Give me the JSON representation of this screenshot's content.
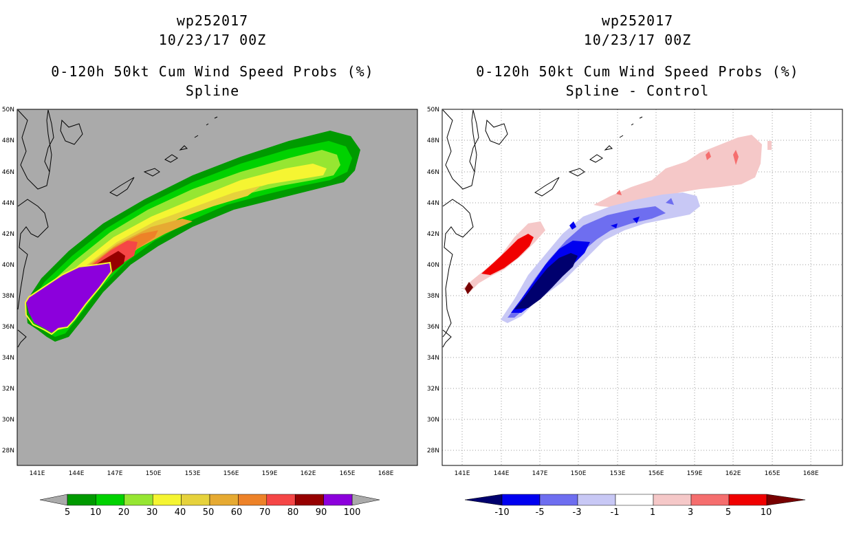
{
  "left": {
    "title_line1": "wp252017",
    "title_line2": "10/23/17 00Z",
    "title_line3": "0-120h 50kt Cum Wind Speed Probs (%)",
    "title_line4": "Spline",
    "background_color": "#aaaaaa",
    "colorbar": {
      "labels": [
        "5",
        "10",
        "20",
        "30",
        "40",
        "50",
        "60",
        "70",
        "80",
        "90",
        "100"
      ],
      "colors": [
        "#009a00",
        "#00d200",
        "#96e632",
        "#f5f532",
        "#e6d23c",
        "#e6aa32",
        "#ed8228",
        "#f54646",
        "#960000",
        "#8c00dc"
      ]
    }
  },
  "right": {
    "title_line1": "wp252017",
    "title_line2": "10/23/17 00Z",
    "title_line3": "0-120h 50kt Cum Wind Speed Probs (%)",
    "title_line4": "Spline - Control",
    "background_color": "#ffffff",
    "colorbar": {
      "labels": [
        "-10",
        "-5",
        "-3",
        "-1",
        "1",
        "3",
        "5",
        "10"
      ],
      "colors": [
        "#00006e",
        "#0000f0",
        "#6e6ef0",
        "#c8c8f5",
        "#ffffff",
        "#f5c8c8",
        "#f56e6e",
        "#f00000",
        "#780000"
      ]
    }
  },
  "axes": {
    "lat_labels": [
      "50N",
      "48N",
      "46N",
      "44N",
      "42N",
      "40N",
      "38N",
      "36N",
      "34N",
      "32N",
      "30N",
      "28N"
    ],
    "lon_labels": [
      "141E",
      "144E",
      "147E",
      "150E",
      "153E",
      "156E",
      "159E",
      "162E",
      "165E",
      "168E"
    ]
  }
}
